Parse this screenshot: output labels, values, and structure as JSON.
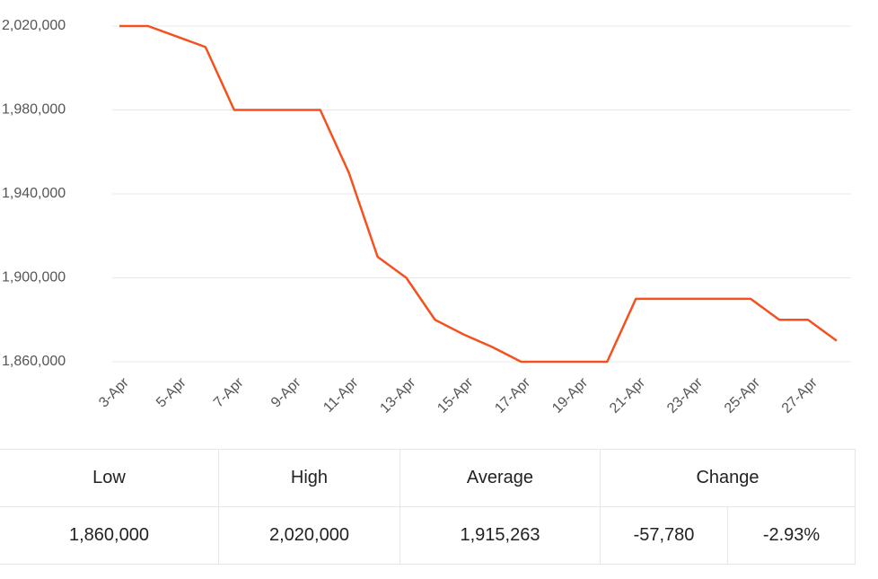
{
  "chart_data": {
    "type": "line",
    "categories": [
      "3-Apr",
      null,
      "5-Apr",
      null,
      "7-Apr",
      null,
      "9-Apr",
      null,
      "11-Apr",
      null,
      "13-Apr",
      null,
      "15-Apr",
      null,
      "17-Apr",
      null,
      "19-Apr",
      null,
      "21-Apr",
      null,
      "23-Apr",
      null,
      "25-Apr",
      null,
      "27-Apr",
      null
    ],
    "values": [
      2020000,
      2020000,
      2015000,
      2010000,
      1980000,
      1980000,
      1980000,
      1980000,
      1950000,
      1910000,
      1900000,
      1880000,
      1873000,
      1867000,
      1860000,
      1860000,
      1860000,
      1860000,
      1890000,
      1890000,
      1890000,
      1890000,
      1890000,
      1880000,
      1880000,
      1870000
    ],
    "color": "#f4511e",
    "ylim": [
      1860000,
      2020000
    ],
    "yticks": [
      {
        "value": 1860000,
        "label": "1,860,000"
      },
      {
        "value": 1900000,
        "label": "1,900,000"
      },
      {
        "value": 1940000,
        "label": "1,940,000"
      },
      {
        "value": 1980000,
        "label": "1,980,000"
      },
      {
        "value": 2020000,
        "label": "2,020,000"
      }
    ],
    "grid": true
  },
  "table": {
    "header": [
      "Low",
      "High",
      "Average",
      "Change"
    ],
    "rows": [
      [
        "1,860,000",
        "2,020,000",
        "1,915,263",
        "-57,780",
        "-2.93%"
      ]
    ]
  }
}
